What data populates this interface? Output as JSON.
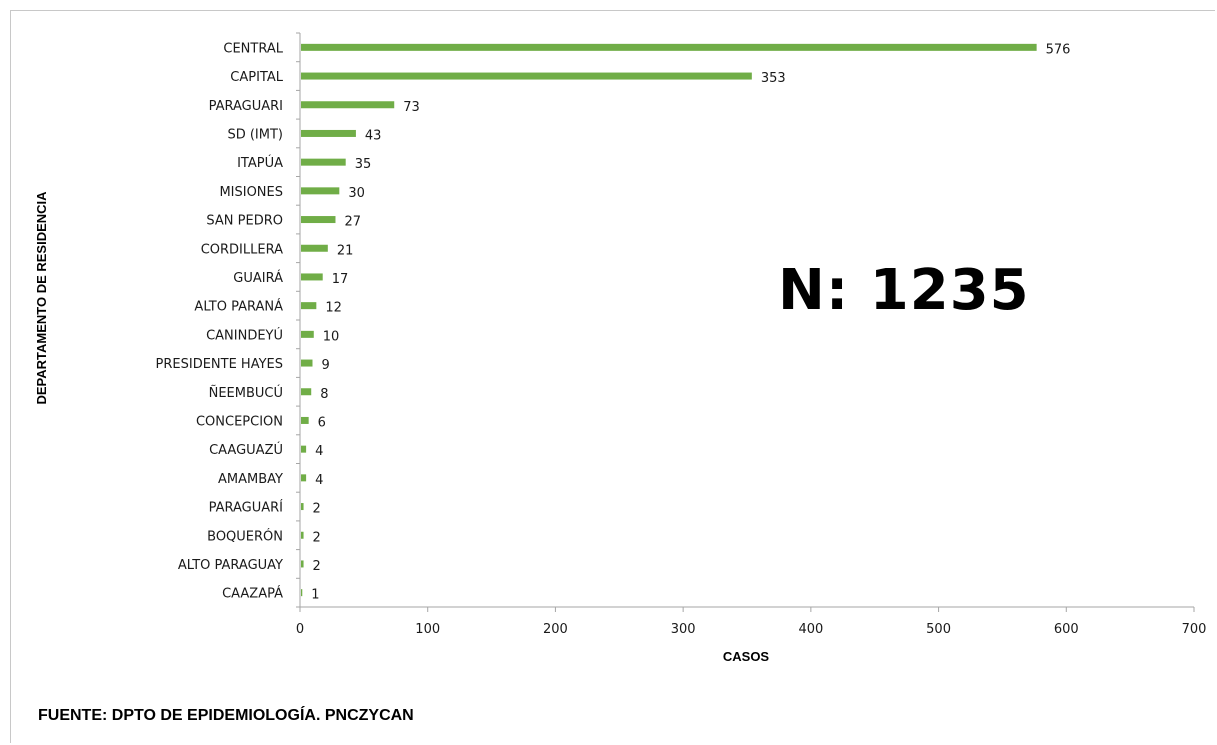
{
  "annotation": "N: 1235",
  "source": "FUENTE: DPTO DE EPIDEMIOLOGÍA.  PNCZYCAN",
  "colors": {
    "bar": "#70ad47",
    "axis": "#a6a6a6"
  },
  "chart_data": {
    "type": "bar",
    "orientation": "horizontal",
    "title": "",
    "xlabel": "CASOS",
    "ylabel": "DEPARTAMENTO DE RESIDENCIA",
    "xlim": [
      0,
      700
    ],
    "xticks": [
      0,
      100,
      200,
      300,
      400,
      500,
      600,
      700
    ],
    "grid": false,
    "categories": [
      "CENTRAL",
      "CAPITAL",
      "PARAGUARI",
      "SD (IMT)",
      "ITAPÚA",
      "MISIONES",
      "SAN PEDRO",
      "CORDILLERA",
      "GUAIRÁ",
      "ALTO PARANÁ",
      "CANINDEYÚ",
      "PRESIDENTE HAYES",
      "ÑEEMBUCÚ",
      "CONCEPCION",
      "CAAGUAZÚ",
      "AMAMBAY",
      "PARAGUARÍ",
      "BOQUERÓN",
      "ALTO PARAGUAY",
      "CAAZAPÁ"
    ],
    "values": [
      576,
      353,
      73,
      43,
      35,
      30,
      27,
      21,
      17,
      12,
      10,
      9,
      8,
      6,
      4,
      4,
      2,
      2,
      2,
      1
    ]
  }
}
